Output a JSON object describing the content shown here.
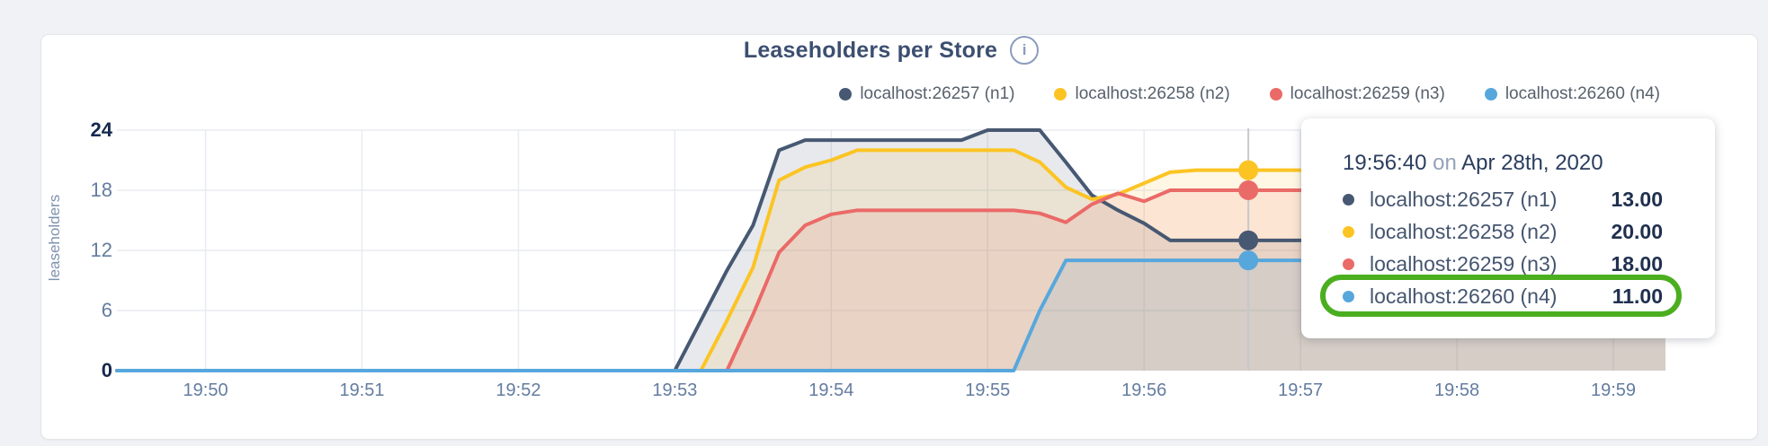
{
  "header": {
    "title": "Leaseholders per Store",
    "info_glyph": "i"
  },
  "legend": [
    {
      "label": "localhost:26257 (n1)",
      "color": "#475872"
    },
    {
      "label": "localhost:26258 (n2)",
      "color": "#fcc423"
    },
    {
      "label": "localhost:26259 (n3)",
      "color": "#ea6a68"
    },
    {
      "label": "localhost:26260 (n4)",
      "color": "#57a7dc"
    }
  ],
  "axes": {
    "y_label": "leaseholders"
  },
  "tooltip": {
    "time": "19:56:40",
    "on_word": "on",
    "date": "Apr 28th, 2020",
    "rows": [
      {
        "label": "localhost:26257 (n1)",
        "value": "13.00",
        "color": "#475872"
      },
      {
        "label": "localhost:26258 (n2)",
        "value": "20.00",
        "color": "#fcc423"
      },
      {
        "label": "localhost:26259 (n3)",
        "value": "18.00",
        "color": "#ea6a68"
      },
      {
        "label": "localhost:26260 (n4)",
        "value": "11.00",
        "color": "#57a7dc",
        "highlighted": true
      }
    ]
  },
  "chart_data": {
    "type": "area",
    "title": "Leaseholders per Store",
    "xlabel": "",
    "ylabel": "leaseholders",
    "ylim": [
      0,
      24
    ],
    "y_ticks": [
      0,
      6,
      12,
      18,
      24
    ],
    "y_ticks_bold": [
      0,
      24
    ],
    "x_tick_labels": [
      "19:50",
      "19:51",
      "19:52",
      "19:53",
      "19:54",
      "19:55",
      "19:56",
      "19:57",
      "19:58",
      "19:59"
    ],
    "x_tick_seconds_from_1950": [
      0,
      60,
      120,
      180,
      240,
      300,
      360,
      420,
      480,
      540
    ],
    "x_domain_seconds": [
      -34,
      560
    ],
    "grid": true,
    "legend_position": "top-right",
    "fill_opacity": 0.13,
    "hover": {
      "time": "19:56:40",
      "date": "Apr 28th, 2020",
      "t": 400,
      "values": [
        13,
        20,
        18,
        11
      ]
    },
    "series": [
      {
        "name": "localhost:26257 (n1)",
        "color": "#475872",
        "points": [
          [
            -34,
            0
          ],
          [
            180,
            0
          ],
          [
            190,
            5
          ],
          [
            200,
            10
          ],
          [
            210,
            14.5
          ],
          [
            220,
            22
          ],
          [
            230,
            23
          ],
          [
            290,
            23
          ],
          [
            300,
            24
          ],
          [
            320,
            24
          ],
          [
            330,
            20.8
          ],
          [
            340,
            17.5
          ],
          [
            350,
            16
          ],
          [
            360,
            14.7
          ],
          [
            370,
            13
          ],
          [
            560,
            13
          ]
        ]
      },
      {
        "name": "localhost:26258 (n2)",
        "color": "#fcc423",
        "points": [
          [
            -34,
            0
          ],
          [
            190,
            0
          ],
          [
            200,
            5
          ],
          [
            210,
            10.3
          ],
          [
            220,
            19
          ],
          [
            230,
            20.3
          ],
          [
            240,
            21
          ],
          [
            250,
            22
          ],
          [
            310,
            22
          ],
          [
            320,
            20.8
          ],
          [
            330,
            18.3
          ],
          [
            340,
            17.1
          ],
          [
            350,
            17.6
          ],
          [
            360,
            18.7
          ],
          [
            370,
            19.8
          ],
          [
            380,
            20
          ],
          [
            560,
            20
          ]
        ]
      },
      {
        "name": "localhost:26259 (n3)",
        "color": "#ea6a68",
        "points": [
          [
            -34,
            0
          ],
          [
            200,
            0
          ],
          [
            210,
            5.6
          ],
          [
            220,
            11.8
          ],
          [
            230,
            14.5
          ],
          [
            240,
            15.6
          ],
          [
            250,
            16
          ],
          [
            310,
            16
          ],
          [
            320,
            15.7
          ],
          [
            330,
            14.8
          ],
          [
            340,
            16.6
          ],
          [
            350,
            17.7
          ],
          [
            360,
            16.9
          ],
          [
            370,
            18
          ],
          [
            560,
            18
          ]
        ]
      },
      {
        "name": "localhost:26260 (n4)",
        "color": "#57a7dc",
        "points": [
          [
            -34,
            0
          ],
          [
            310,
            0
          ],
          [
            320,
            6
          ],
          [
            330,
            11
          ],
          [
            560,
            11
          ]
        ]
      }
    ]
  }
}
